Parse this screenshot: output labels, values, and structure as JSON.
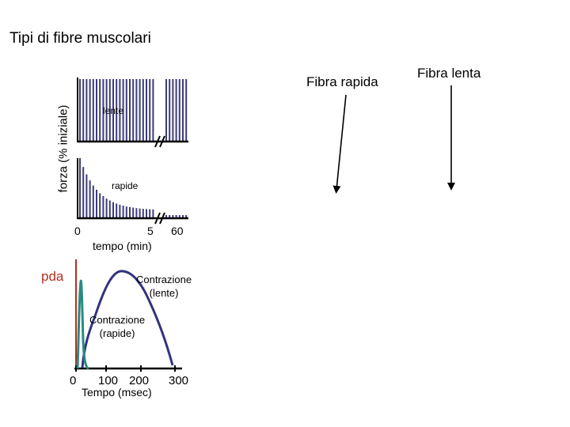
{
  "title": "Tipi di fibre muscolari",
  "top_chart": {
    "ylabel": "forza (% iniziale)",
    "label_slow": "lente",
    "label_fast": "rapide",
    "x_ticks": [
      "0",
      "5",
      "60"
    ],
    "xlabel": "tempo (min)"
  },
  "arrows": {
    "fast_label": "Fibra rapida",
    "slow_label": "Fibra lenta"
  },
  "bottom_chart": {
    "pda_label": "pda",
    "slow_label_line1": "Contrazione",
    "slow_label_line2": "(lente)",
    "fast_label_line1": "Contrazione",
    "fast_label_line2": "(rapide)",
    "x_ticks": [
      "0",
      "100",
      "200",
      "300"
    ],
    "xlabel": "Tempo (msec)"
  },
  "colors": {
    "bars": "#3b3b7a",
    "slow_curve": "#33337f",
    "fast_curve": "#2a8a80",
    "pda": "#b03020"
  }
}
